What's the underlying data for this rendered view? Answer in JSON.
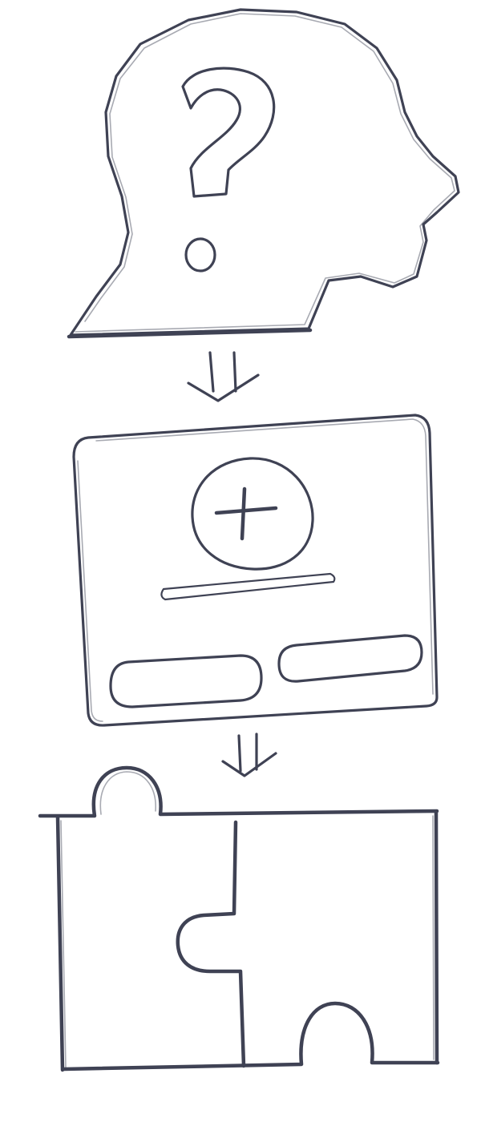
{
  "diagram": {
    "steps": [
      {
        "name": "confused-head",
        "icon": "question-head-icon"
      },
      {
        "name": "add-dialog",
        "icon": "plus-dialog-icon"
      },
      {
        "name": "puzzle-solution",
        "icon": "puzzle-icon"
      }
    ],
    "connectors": [
      {
        "from": "confused-head",
        "to": "add-dialog",
        "icon": "double-arrow-down-icon"
      },
      {
        "from": "add-dialog",
        "to": "puzzle-solution",
        "icon": "double-arrow-down-icon"
      }
    ],
    "colors": {
      "ink": "#3f4254",
      "background": "#ffffff"
    }
  }
}
